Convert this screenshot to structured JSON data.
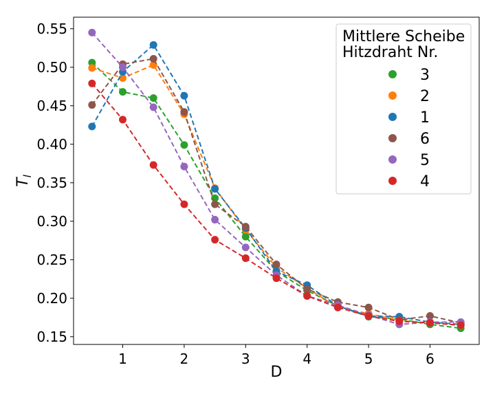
{
  "chart_data": {
    "type": "line",
    "xlabel": "D",
    "ylabel": "T",
    "ylabel_sub": "l",
    "xlim": [
      0.2,
      6.8
    ],
    "ylim": [
      0.14,
      0.565
    ],
    "xticks": [
      1,
      2,
      3,
      4,
      5,
      6
    ],
    "yticks": [
      0.15,
      0.2,
      0.25,
      0.3,
      0.35,
      0.4,
      0.45,
      0.5,
      0.55
    ],
    "x": [
      0.5,
      1,
      1.5,
      2,
      2.5,
      3,
      3.5,
      4,
      4.5,
      5,
      5.5,
      6,
      6.5
    ],
    "grid": false,
    "line_style": "dashed",
    "legend": {
      "placement": "top-right",
      "title_line1": "Mittlere Scheibe",
      "title_line2": "Hitzdraht Nr."
    },
    "series": [
      {
        "name": "3",
        "color": "#2ca02c",
        "values": [
          0.506,
          0.468,
          0.46,
          0.399,
          0.33,
          0.28,
          0.235,
          0.21,
          0.19,
          0.176,
          0.173,
          0.166,
          0.161
        ]
      },
      {
        "name": "2",
        "color": "#ff7f0e",
        "values": [
          0.499,
          0.486,
          0.503,
          0.439,
          0.343,
          0.289,
          0.24,
          0.213,
          0.188,
          0.18,
          0.171,
          0.168,
          0.165
        ]
      },
      {
        "name": "1",
        "color": "#1f77b4",
        "values": [
          0.423,
          0.494,
          0.529,
          0.463,
          0.342,
          0.291,
          0.235,
          0.217,
          0.19,
          0.177,
          0.176,
          0.169,
          0.166
        ]
      },
      {
        "name": "6",
        "color": "#8c564b",
        "values": [
          0.451,
          0.504,
          0.511,
          0.442,
          0.322,
          0.293,
          0.244,
          0.212,
          0.195,
          0.188,
          0.172,
          0.177,
          0.168
        ]
      },
      {
        "name": "5",
        "color": "#9467bd",
        "values": [
          0.545,
          0.5,
          0.448,
          0.371,
          0.302,
          0.266,
          0.23,
          0.203,
          0.191,
          0.178,
          0.166,
          0.169,
          0.169
        ]
      },
      {
        "name": "4",
        "color": "#d62728",
        "values": [
          0.479,
          0.432,
          0.373,
          0.322,
          0.276,
          0.252,
          0.226,
          0.203,
          0.188,
          0.177,
          0.17,
          0.168,
          0.165
        ]
      }
    ]
  }
}
